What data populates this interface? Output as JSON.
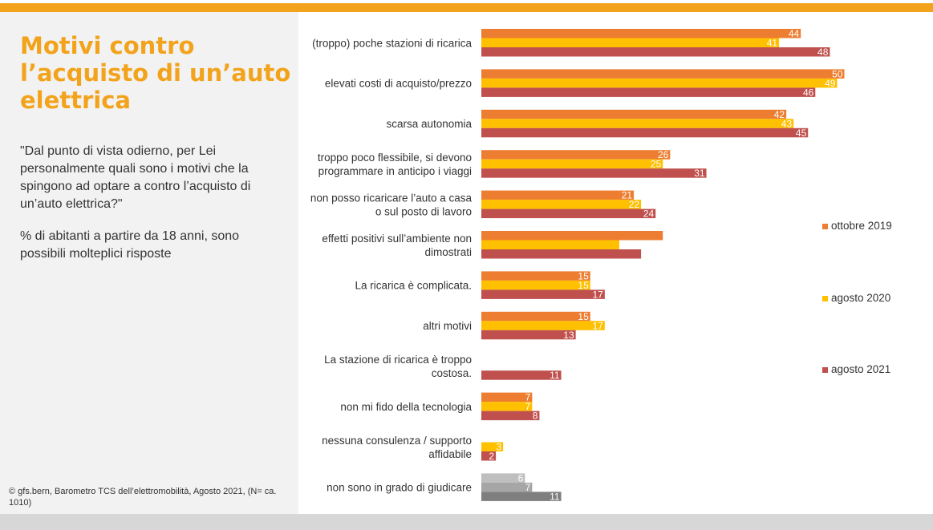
{
  "header": {
    "title": "Motivi contro l’acquisto di un’auto elettrica",
    "question": "\"Dal punto di vista odierno, per Lei personalmente quali sono i motivi che la spingono ad optare a contro l’acquisto di un’auto elettrica?\"",
    "note": "% di abitanti a partire da 18 anni, sono possibili molteplici risposte"
  },
  "footer": {
    "source": "© gfs.bern, Barometro TCS dell’elettromobilità, Agosto 2021, (N= ca. 1010)"
  },
  "colors": {
    "accent": "#f2a31b",
    "series": [
      "#ed7d31",
      "#ffc000",
      "#c0504d"
    ],
    "gray_series": [
      "#bfbfbf",
      "#a6a6a6",
      "#7f7f7f"
    ]
  },
  "chart_data": {
    "type": "bar",
    "orientation": "horizontal",
    "title": "Motivi contro l’acquisto di un’auto elettrica",
    "xlabel": "",
    "ylabel": "",
    "xlim": [
      0,
      55
    ],
    "grid": false,
    "legend_position": "right",
    "series": [
      {
        "name": "ottobre 2019",
        "values": [
          44,
          50,
          42,
          26,
          21,
          25,
          15,
          15,
          null,
          7,
          null,
          6
        ]
      },
      {
        "name": "agosto 2020",
        "values": [
          41,
          49,
          43,
          25,
          22,
          19,
          15,
          17,
          null,
          7,
          3,
          7
        ]
      },
      {
        "name": "agosto 2021",
        "values": [
          48,
          46,
          45,
          31,
          24,
          22,
          17,
          13,
          11,
          8,
          2,
          11
        ]
      }
    ],
    "categories": [
      [
        "(troppo) poche stazioni di ricarica"
      ],
      [
        "elevati costi di acquisto/prezzo"
      ],
      [
        "scarsa autonomia"
      ],
      [
        "troppo poco flessibile, si devono",
        "programmare in anticipo i viaggi"
      ],
      [
        "non posso ricaricare l’auto a casa",
        "o sul posto di lavoro"
      ],
      [
        "effetti positivi sull’ambiente non",
        "dimostrati"
      ],
      [
        "La ricarica è complicata."
      ],
      [
        "altri motivi"
      ],
      [
        "La stazione di ricarica è troppo",
        "costosa."
      ],
      [
        "non mi fido della tecnologia"
      ],
      [
        "nessuna consulenza / supporto",
        "affidabile"
      ],
      [
        "non sono in grado di giudicare"
      ]
    ],
    "value_labels": [
      [
        "44",
        "41",
        "48"
      ],
      [
        "50",
        "49",
        "46"
      ],
      [
        "42",
        "43",
        "45"
      ],
      [
        "26",
        "25",
        "31"
      ],
      [
        "21",
        "22",
        "24"
      ],
      [
        "",
        "",
        ""
      ],
      [
        "15",
        "15",
        "17"
      ],
      [
        "15",
        "17",
        "13"
      ],
      [
        "",
        "",
        "11"
      ],
      [
        "7",
        "7",
        "8"
      ],
      [
        "",
        "3",
        "2"
      ],
      [
        "6",
        "7",
        "11"
      ]
    ]
  }
}
